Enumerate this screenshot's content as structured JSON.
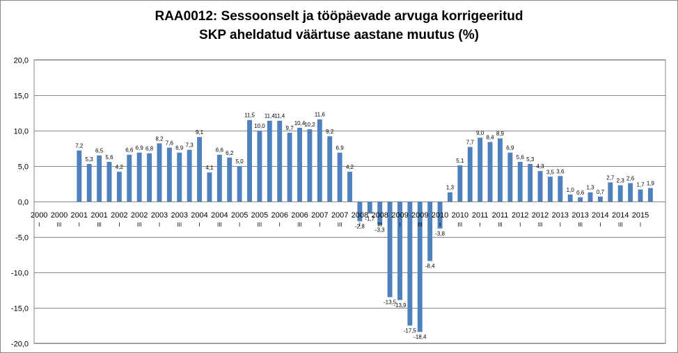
{
  "chart_data": {
    "type": "bar",
    "title": "RAA0012: Sessoonselt ja tööpäevade arvuga korrigeeritud SKP aheldatud väärtuse aastane muutus (%)",
    "title_lines": [
      "RAA0012: Sessoonselt ja tööpäevade arvuga korrigeeritud",
      "SKP aheldatud väärtuse aastane muutus (%)"
    ],
    "ylim": [
      -20,
      20
    ],
    "yticks": [
      "-20,0",
      "-15,0",
      "-10,0",
      "-5,0",
      "0,0",
      "5,0",
      "10,0",
      "15,0",
      "20,0"
    ],
    "ytick_values": [
      -20,
      -15,
      -10,
      -5,
      0,
      5,
      10,
      15,
      20
    ],
    "grid": true,
    "bar_color": "#4f81bd",
    "categories": [
      "2000 I",
      "2000 II",
      "2000 III",
      "2000 IV",
      "2001 I",
      "2001 II",
      "2001 III",
      "2001 IV",
      "2002 I",
      "2002 II",
      "2002 III",
      "2002 IV",
      "2003 I",
      "2003 II",
      "2003 III",
      "2003 IV",
      "2004 I",
      "2004 II",
      "2004 III",
      "2004 IV",
      "2005 I",
      "2005 II",
      "2005 III",
      "2005 IV",
      "2006 I",
      "2006 II",
      "2006 III",
      "2006 IV",
      "2007 I",
      "2007 II",
      "2007 III",
      "2007 IV",
      "2008 I",
      "2008 II",
      "2008 III",
      "2008 IV",
      "2009 I",
      "2009 II",
      "2009 III",
      "2009 IV",
      "2010 I",
      "2010 II",
      "2010 III",
      "2010 IV",
      "2011 I",
      "2011 II",
      "2011 III",
      "2011 IV",
      "2012 I",
      "2012 II",
      "2012 III",
      "2012 IV",
      "2013 I",
      "2013 II",
      "2013 III",
      "2013 IV",
      "2014 I",
      "2014 II",
      "2014 III",
      "2014 IV",
      "2015 I",
      "2015 II",
      "2015 III"
    ],
    "values": [
      null,
      null,
      null,
      null,
      7.2,
      5.3,
      6.5,
      5.6,
      4.2,
      6.6,
      6.9,
      6.8,
      8.2,
      7.6,
      6.9,
      7.3,
      9.1,
      4.1,
      6.6,
      6.2,
      5.0,
      11.5,
      10.0,
      11.4,
      11.4,
      9.7,
      10.4,
      10.2,
      11.6,
      9.2,
      6.9,
      4.2,
      -2.8,
      -1.7,
      -3.3,
      -13.5,
      -13.9,
      -17.5,
      -18.4,
      -8.4,
      -3.8,
      1.3,
      5.1,
      7.7,
      9.0,
      8.4,
      8.9,
      6.9,
      5.6,
      5.3,
      4.3,
      3.5,
      3.6,
      1.0,
      0.6,
      1.3,
      0.7,
      2.7,
      2.3,
      2.6,
      1.7,
      1.9,
      null
    ],
    "value_labels": [
      "",
      "",
      "",
      "",
      "7,2",
      "5,3",
      "6,5",
      "5,6",
      "4,2",
      "6,6",
      "6,9",
      "6,8",
      "8,2",
      "7,6",
      "6,9",
      "7,3",
      "9,1",
      "4,1",
      "6,6",
      "6,2",
      "5,0",
      "11,5",
      "10,0",
      "11,4",
      "11,4",
      "9,7",
      "10,4",
      "10,2",
      "11,6",
      "9,2",
      "6,9",
      "4,2",
      "-2,8",
      "-1,7",
      "-3,3",
      "-13,5",
      "-13,9",
      "-17,5",
      "-18,4",
      "-8,4",
      "-3,8",
      "1,3",
      "5,1",
      "7,7",
      "9,0",
      "8,4",
      "8,9",
      "6,9",
      "5,6",
      "5,3",
      "4,3",
      "3,5",
      "3,6",
      "1,0",
      "0,6",
      "1,3",
      "0,7",
      "2,7",
      "2,3",
      "2,6",
      "1,7",
      "1,9",
      ""
    ],
    "year_labels": [
      "2000",
      "2000",
      "2001",
      "2001",
      "2002",
      "2002",
      "2003",
      "2003",
      "2004",
      "2004",
      "2005",
      "2005",
      "2006",
      "2006",
      "2007",
      "2007",
      "2008",
      "2008",
      "2009",
      "2009",
      "2010",
      "2010",
      "2011",
      "2011",
      "2012",
      "2012",
      "2013",
      "2013",
      "2014",
      "2014",
      "2015"
    ],
    "quarter_labels": [
      "I",
      "III"
    ]
  }
}
